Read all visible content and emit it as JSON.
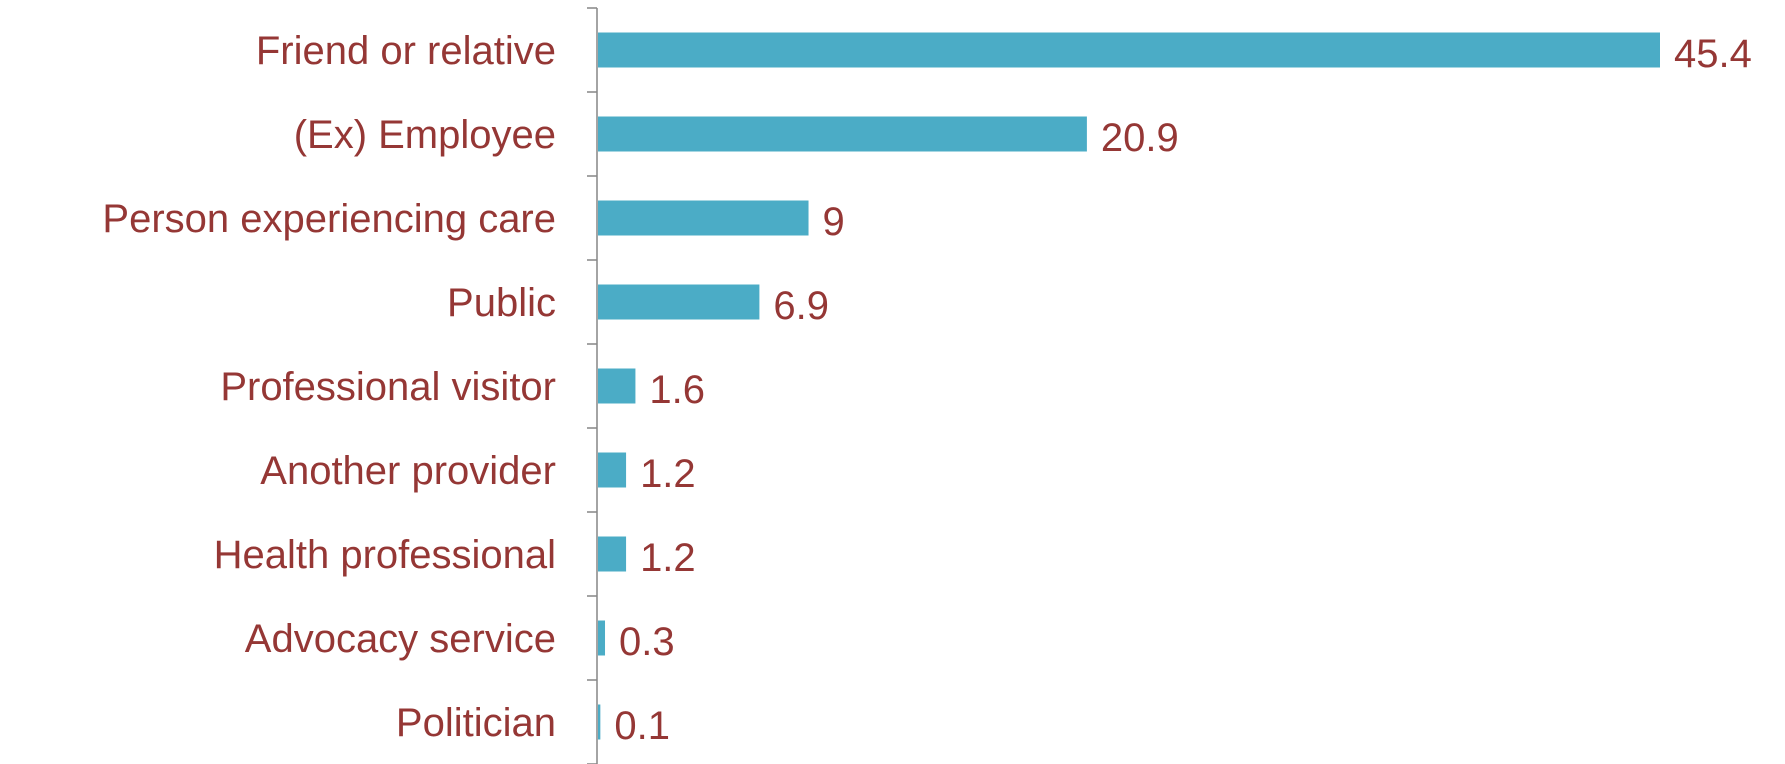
{
  "chart_data": {
    "type": "bar",
    "orientation": "horizontal",
    "categories": [
      "Friend or relative",
      "(Ex) Employee",
      "Person experiencing care",
      "Public",
      "Professional visitor",
      "Another provider",
      "Health professional",
      "Advocacy service",
      "Politician"
    ],
    "values": [
      45.4,
      20.9,
      9,
      6.9,
      1.6,
      1.2,
      1.2,
      0.3,
      0.1
    ],
    "value_labels": [
      "45.4",
      "20.9",
      "9",
      "6.9",
      "1.6",
      "1.2",
      "1.2",
      "0.3",
      "0.1"
    ],
    "xlim": [
      0,
      45.4
    ],
    "title": "",
    "xlabel": "",
    "ylabel": "",
    "grid": false,
    "legend": "none",
    "colors": {
      "bar": "#4BACC6",
      "text": "#953735",
      "axis": "#868686"
    }
  }
}
